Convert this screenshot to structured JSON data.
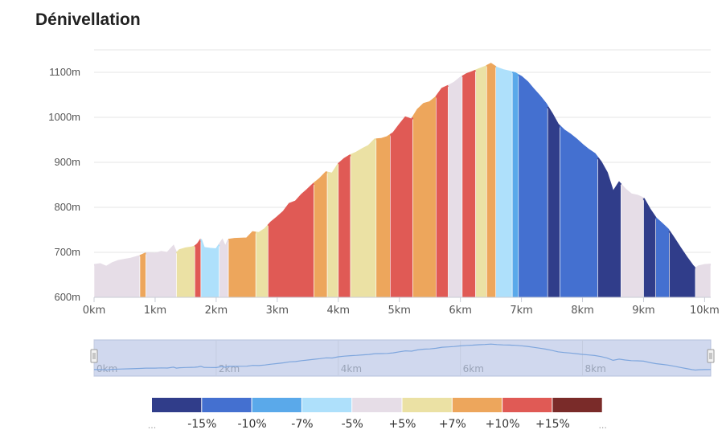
{
  "chart_data": {
    "type": "area",
    "title": "Dénivellation",
    "xlabel": "",
    "ylabel": "",
    "x_unit": "km",
    "y_unit": "m",
    "xlim": [
      0,
      10.1
    ],
    "ylim": [
      600,
      1150
    ],
    "grid": true,
    "y_ticks": [
      {
        "value": 600,
        "label": "600m"
      },
      {
        "value": 700,
        "label": "700m"
      },
      {
        "value": 800,
        "label": "800m"
      },
      {
        "value": 900,
        "label": "900m"
      },
      {
        "value": 1000,
        "label": "1000m"
      },
      {
        "value": 1100,
        "label": "1100m"
      }
    ],
    "x_ticks": [
      {
        "value": 0,
        "label": "0km"
      },
      {
        "value": 1,
        "label": "1km"
      },
      {
        "value": 2,
        "label": "2km"
      },
      {
        "value": 3,
        "label": "3km"
      },
      {
        "value": 4,
        "label": "4km"
      },
      {
        "value": 5,
        "label": "5km"
      },
      {
        "value": 6,
        "label": "6km"
      },
      {
        "value": 7,
        "label": "7km"
      },
      {
        "value": 8,
        "label": "8km"
      },
      {
        "value": 9,
        "label": "9km"
      },
      {
        "value": 10,
        "label": "10km"
      }
    ],
    "x": [
      0.0,
      0.1,
      0.2,
      0.3,
      0.4,
      0.6,
      0.75,
      0.85,
      0.9,
      1.0,
      1.1,
      1.2,
      1.3,
      1.35,
      1.4,
      1.5,
      1.6,
      1.65,
      1.7,
      1.75,
      1.8,
      1.9,
      2.0,
      2.1,
      2.15,
      2.2,
      2.3,
      2.5,
      2.6,
      2.7,
      2.8,
      2.9,
      3.0,
      3.1,
      3.2,
      3.3,
      3.4,
      3.5,
      3.6,
      3.7,
      3.8,
      3.9,
      4.0,
      4.1,
      4.2,
      4.3,
      4.4,
      4.5,
      4.6,
      4.7,
      4.8,
      4.9,
      5.0,
      5.1,
      5.2,
      5.3,
      5.4,
      5.5,
      5.6,
      5.7,
      5.8,
      5.9,
      6.0,
      6.1,
      6.2,
      6.3,
      6.4,
      6.5,
      6.6,
      6.7,
      6.8,
      6.9,
      7.0,
      7.1,
      7.2,
      7.3,
      7.4,
      7.5,
      7.6,
      7.7,
      7.8,
      7.9,
      8.0,
      8.1,
      8.2,
      8.3,
      8.4,
      8.5,
      8.6,
      8.7,
      8.8,
      8.9,
      9.0,
      9.1,
      9.2,
      9.3,
      9.4,
      9.5,
      9.6,
      9.7,
      9.8,
      9.85,
      9.9,
      10.0,
      10.1
    ],
    "y": [
      672,
      674,
      668,
      676,
      681,
      686,
      692,
      698,
      698,
      697,
      701,
      699,
      714,
      698,
      705,
      709,
      711,
      713,
      719,
      729,
      710,
      708,
      707,
      727,
      712,
      728,
      730,
      731,
      745,
      743,
      752,
      767,
      778,
      790,
      808,
      813,
      828,
      840,
      853,
      864,
      878,
      875,
      896,
      908,
      916,
      922,
      930,
      937,
      951,
      952,
      956,
      965,
      983,
      1000,
      995,
      1017,
      1030,
      1034,
      1045,
      1064,
      1070,
      1077,
      1088,
      1096,
      1101,
      1107,
      1112,
      1119,
      1110,
      1105,
      1102,
      1098,
      1090,
      1078,
      1062,
      1047,
      1030,
      1008,
      984,
      971,
      962,
      951,
      939,
      928,
      919,
      901,
      877,
      834,
      855,
      840,
      829,
      826,
      820,
      796,
      776,
      764,
      751,
      731,
      710,
      690,
      671,
      664,
      669,
      672,
      673
    ],
    "grade_bins": [
      "...",
      "-15%",
      "-10%",
      "-7%",
      "-5%",
      "+5%",
      "+7%",
      "+10%",
      "+15%",
      "..."
    ],
    "segments": [
      {
        "x0": 0.0,
        "x1": 0.75,
        "grade_bin": "-5% to +5%"
      },
      {
        "x0": 0.75,
        "x1": 0.85,
        "grade_bin": "+7% to +10%"
      },
      {
        "x0": 0.85,
        "x1": 1.35,
        "grade_bin": "-5% to +5%"
      },
      {
        "x0": 1.35,
        "x1": 1.65,
        "grade_bin": "+5% to +7%"
      },
      {
        "x0": 1.65,
        "x1": 1.75,
        "grade_bin": "+10% to +15%"
      },
      {
        "x0": 1.75,
        "x1": 2.05,
        "grade_bin": "-7% to -5%"
      },
      {
        "x0": 2.05,
        "x1": 2.2,
        "grade_bin": "-5% to +5%"
      },
      {
        "x0": 2.2,
        "x1": 2.65,
        "grade_bin": "+7% to +10%"
      },
      {
        "x0": 2.65,
        "x1": 2.85,
        "grade_bin": "+5% to +7%"
      },
      {
        "x0": 2.85,
        "x1": 3.6,
        "grade_bin": "+10% to +15%"
      },
      {
        "x0": 3.6,
        "x1": 3.82,
        "grade_bin": "+7% to +10%"
      },
      {
        "x0": 3.82,
        "x1": 4.0,
        "grade_bin": "+5% to +7%"
      },
      {
        "x0": 4.0,
        "x1": 4.2,
        "grade_bin": "+10% to +15%"
      },
      {
        "x0": 4.2,
        "x1": 4.62,
        "grade_bin": "+5% to +7%"
      },
      {
        "x0": 4.62,
        "x1": 4.85,
        "grade_bin": "+7% to +10%"
      },
      {
        "x0": 4.85,
        "x1": 5.22,
        "grade_bin": "+10% to +15%"
      },
      {
        "x0": 5.22,
        "x1": 5.6,
        "grade_bin": "+7% to +10%"
      },
      {
        "x0": 5.6,
        "x1": 5.8,
        "grade_bin": "+10% to +15%"
      },
      {
        "x0": 5.8,
        "x1": 6.03,
        "grade_bin": "-5% to +5%"
      },
      {
        "x0": 6.03,
        "x1": 6.25,
        "grade_bin": "+10% to +15%"
      },
      {
        "x0": 6.25,
        "x1": 6.43,
        "grade_bin": "+5% to +7%"
      },
      {
        "x0": 6.43,
        "x1": 6.58,
        "grade_bin": "+7% to +10%"
      },
      {
        "x0": 6.58,
        "x1": 6.85,
        "grade_bin": "-7% to -5%"
      },
      {
        "x0": 6.85,
        "x1": 6.95,
        "grade_bin": "-10% to -7%"
      },
      {
        "x0": 6.95,
        "x1": 7.43,
        "grade_bin": "-15% to -10%"
      },
      {
        "x0": 7.43,
        "x1": 7.63,
        "grade_bin": "... to -15%"
      },
      {
        "x0": 7.63,
        "x1": 8.25,
        "grade_bin": "-15% to -10%"
      },
      {
        "x0": 8.25,
        "x1": 8.63,
        "grade_bin": "... to -15%"
      },
      {
        "x0": 8.63,
        "x1": 9.0,
        "grade_bin": "-5% to +5%"
      },
      {
        "x0": 9.0,
        "x1": 9.2,
        "grade_bin": "... to -15%"
      },
      {
        "x0": 9.2,
        "x1": 9.42,
        "grade_bin": "-15% to -10%"
      },
      {
        "x0": 9.42,
        "x1": 9.85,
        "grade_bin": "... to -15%"
      },
      {
        "x0": 9.85,
        "x1": 10.1,
        "grade_bin": "-5% to +5%"
      }
    ]
  },
  "colors": {
    "... to -15%": "#303d8a",
    "-15% to -10%": "#4470d0",
    "-10% to -7%": "#5aa9ea",
    "-7% to -5%": "#aee0fb",
    "-5% to +5%": "#e6dde7",
    "+5% to +7%": "#ebe1a4",
    "+7% to +10%": "#eda65c",
    "+10% to +15%": "#e05a55",
    "+15% to ...": "#7a2b29",
    "grid": "#e6e6e6",
    "axis": "#c8ccd6",
    "navigator_bg": "#d0d8ee",
    "navigator_line": "#7ea6dd"
  },
  "navigator": {
    "labels": [
      "0km",
      "2km",
      "4km",
      "6km",
      "8km"
    ]
  },
  "legend": {
    "bins": [
      "... to -15%",
      "-15% to -10%",
      "-10% to -7%",
      "-7% to -5%",
      "-5% to +5%",
      "+5% to +7%",
      "+7% to +10%",
      "+10% to +15%",
      "+15% to ..."
    ],
    "labels": [
      "...",
      "-15%",
      "-10%",
      "-7%",
      "-5%",
      "+5%",
      "+7%",
      "+10%",
      "+15%",
      "..."
    ]
  }
}
